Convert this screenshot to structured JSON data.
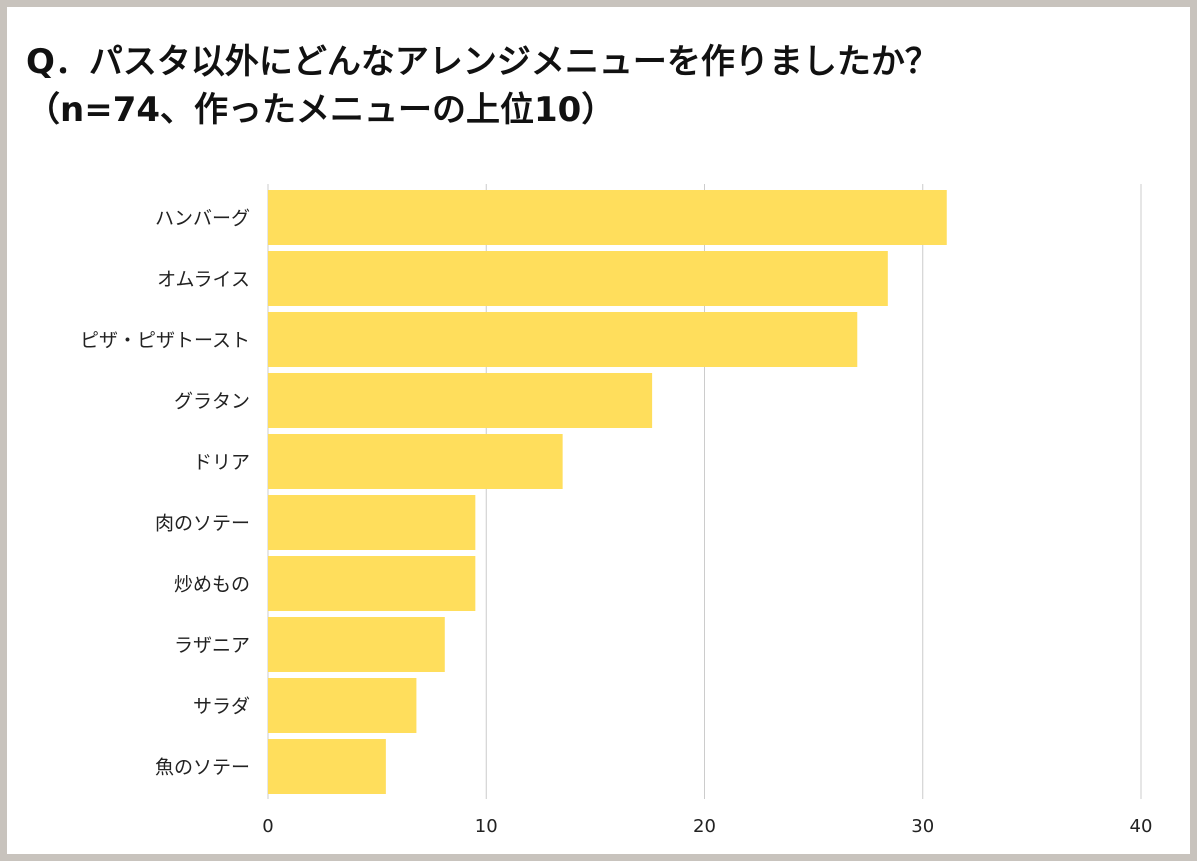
{
  "title": {
    "line1": "Q．パスタ以外にどんなアレンジメニューを作りましたか？",
    "line2": "（n=74、作ったメニューの上位10）"
  },
  "colors": {
    "bar": "#FFDE5C",
    "grid": "#cccccc",
    "frame": "#c8c3bd"
  },
  "chart_data": {
    "type": "bar",
    "orientation": "horizontal",
    "categories": [
      "ハンバーグ",
      "オムライス",
      "ピザ・ピザトースト",
      "グラタン",
      "ドリア",
      "肉のソテー",
      "炒めもの",
      "ラザニア",
      "サラダ",
      "魚のソテー"
    ],
    "values": [
      31.1,
      28.4,
      27.0,
      17.6,
      13.5,
      9.5,
      9.5,
      8.1,
      6.8,
      5.4
    ],
    "xlim": [
      0,
      40
    ],
    "xticks": [
      "0",
      "10",
      "20",
      "30",
      "40"
    ],
    "xlabel": "",
    "ylabel": "",
    "grid": true
  }
}
